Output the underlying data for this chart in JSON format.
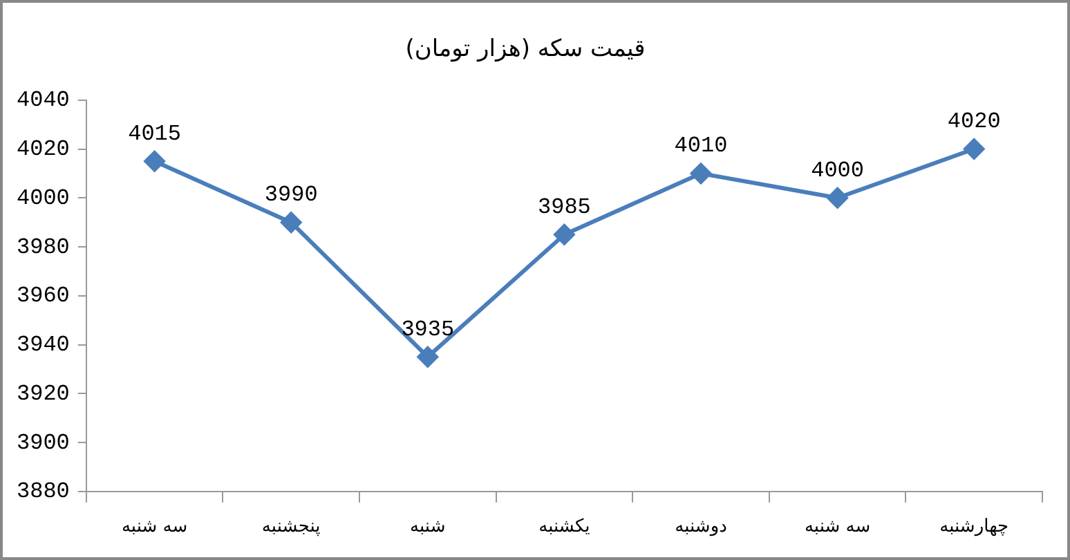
{
  "chart_data": {
    "type": "line",
    "title": "قیمت سکه (هزار تومان)",
    "categories": [
      "سه شنبه",
      "پنجشنبه",
      "شنبه",
      "یکشنبه",
      "دوشنبه",
      "سه شنبه",
      "چهارشنبه"
    ],
    "series": [
      {
        "color": "#4a7ebb",
        "values": [
          4015,
          3990,
          3935,
          3985,
          4010,
          4000,
          4020
        ]
      }
    ],
    "ylim": [
      3880,
      4040
    ],
    "yticks": [
      3880,
      3900,
      3920,
      3940,
      3960,
      3980,
      4000,
      4020,
      4040
    ],
    "grid": false,
    "legend": false,
    "marker": "diamond",
    "line_style": "solid",
    "data_labels": true
  }
}
